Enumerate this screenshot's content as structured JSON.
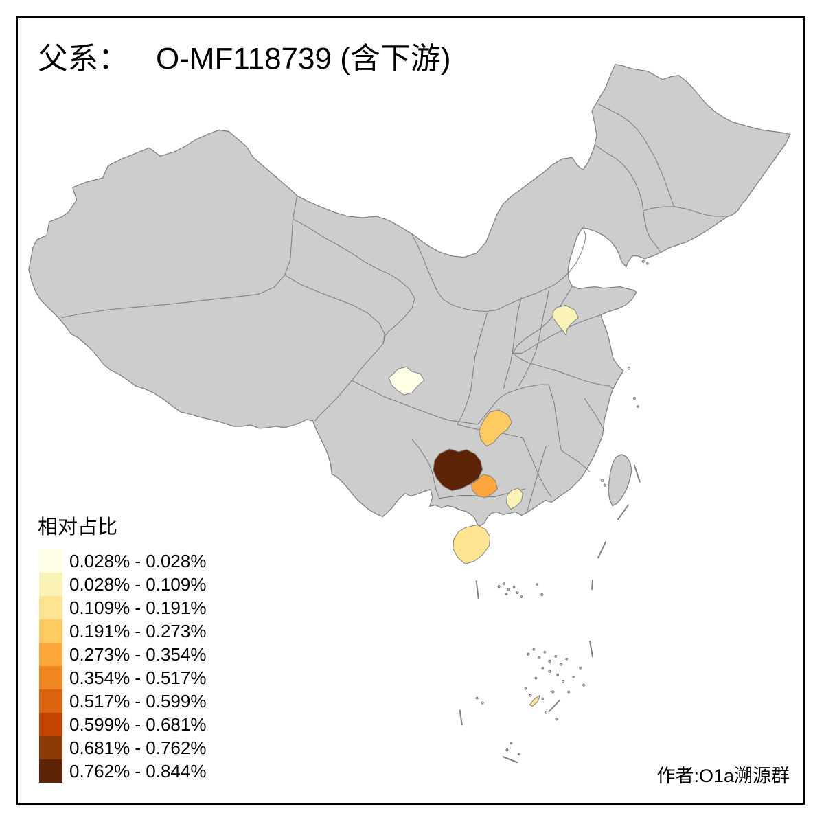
{
  "title": {
    "prefix": "父系：",
    "main": "O-MF118739 (含下游)"
  },
  "legend": {
    "title": "相对占比",
    "classes": [
      {
        "label": "0.028% - 0.028%",
        "color": "#FFFFE5"
      },
      {
        "label": "0.028% - 0.109%",
        "color": "#FBF2B6"
      },
      {
        "label": "0.109% - 0.191%",
        "color": "#FEE391"
      },
      {
        "label": "0.191% - 0.273%",
        "color": "#FDCB62"
      },
      {
        "label": "0.273% - 0.354%",
        "color": "#FDA63B"
      },
      {
        "label": "0.354% - 0.517%",
        "color": "#F0861F"
      },
      {
        "label": "0.517% - 0.599%",
        "color": "#DB6310"
      },
      {
        "label": "0.599% - 0.681%",
        "color": "#C34503"
      },
      {
        "label": "0.681% - 0.762%",
        "color": "#8E3A06"
      },
      {
        "label": "0.762% - 0.844%",
        "color": "#5E2407"
      }
    ]
  },
  "attribution": {
    "text": "作者:O1a溯源群"
  },
  "map": {
    "land_fill": "#CDCDCD",
    "border_color": "#808080",
    "frame_color": "#000000",
    "background": "#FFFFFF",
    "regions": [
      {
        "id": "chengdu-area",
        "color_class": 1
      },
      {
        "id": "beijing-area",
        "color_class": 2
      },
      {
        "id": "pearl-delta-area",
        "color_class": 2
      },
      {
        "id": "hainan-island",
        "color_class": 3
      },
      {
        "id": "south-china-sea-islet",
        "color_class": 3
      },
      {
        "id": "north-guizhou-area",
        "color_class": 4
      },
      {
        "id": "north-guangxi-area",
        "color_class": 5
      },
      {
        "id": "central-guizhou-area",
        "color_class": 10
      }
    ]
  }
}
